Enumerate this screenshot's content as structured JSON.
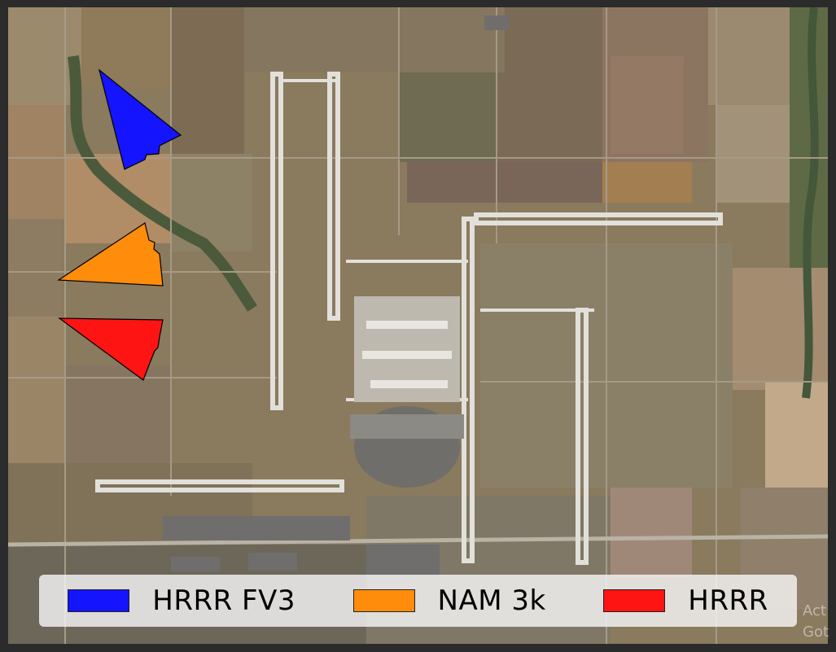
{
  "legend": {
    "items": [
      {
        "label": "HRRR FV3",
        "color": "#1414ff"
      },
      {
        "label": "NAM 3k",
        "color": "#ff8c0a"
      },
      {
        "label": "HRRR",
        "color": "#ff1414"
      }
    ]
  },
  "watermark": {
    "line1": "Act",
    "line2": "Got"
  }
}
